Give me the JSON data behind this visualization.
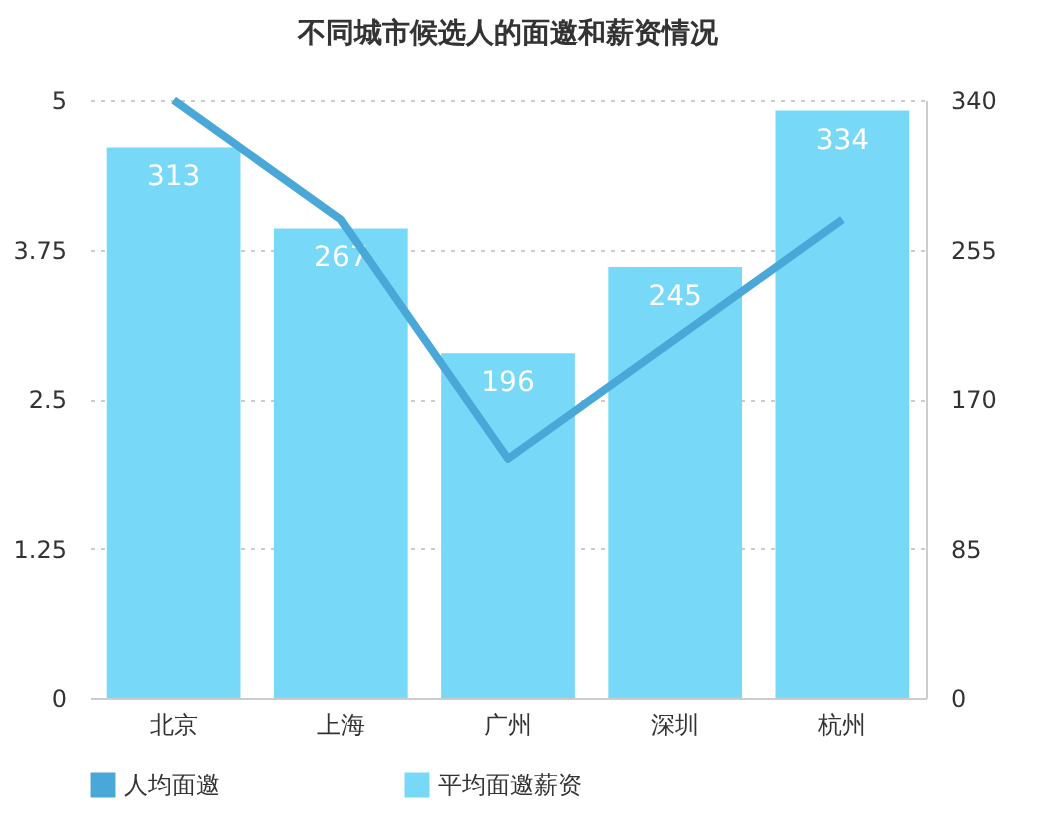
{
  "chart_data": {
    "type": "bar",
    "title": "不同城市候选人的面邀和薪资情况",
    "categories": [
      "北京",
      "上海",
      "广州",
      "深圳",
      "杭州"
    ],
    "series": [
      {
        "name": "人均面邀",
        "type": "line",
        "color": "#4aa8d8",
        "values": [
          5,
          4,
          2,
          3,
          4
        ]
      },
      {
        "name": "平均面邀薪资",
        "axis": "y2",
        "color": "#77d9f7",
        "values": [
          313,
          267,
          196,
          245,
          334
        ],
        "value_labels": [
          "313",
          "267",
          "196",
          "245",
          "334"
        ]
      }
    ],
    "ylim": [
      0,
      5
    ],
    "yticks": [
      0,
      1.25,
      2.5,
      3.75,
      5
    ],
    "y2lim": [
      0,
      340
    ],
    "y2ticks": [
      0,
      85,
      170,
      255,
      340
    ],
    "grid": "y",
    "legend": "bottom"
  }
}
